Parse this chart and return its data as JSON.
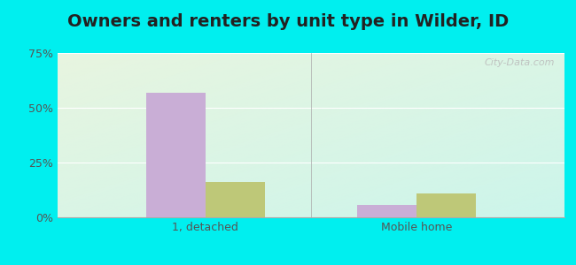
{
  "title": "Owners and renters by unit type in Wilder, ID",
  "categories": [
    "1, detached",
    "Mobile home"
  ],
  "owner_values": [
    57,
    5.5
  ],
  "renter_values": [
    16,
    11
  ],
  "owner_color": "#c9aed6",
  "renter_color": "#bec878",
  "ylim": [
    0,
    75
  ],
  "yticks": [
    0,
    25,
    50,
    75
  ],
  "yticklabels": [
    "0%",
    "25%",
    "50%",
    "75%"
  ],
  "bar_width": 0.28,
  "bg_topleft": "#e8f5e0",
  "bg_topright": "#e8f5e0",
  "bg_bottomleft": "#e8f5e0",
  "bg_bottomright": "#ccf5f0",
  "outer_bg": "#00efef",
  "watermark": "City-Data.com",
  "title_fontsize": 14,
  "tick_fontsize": 9,
  "legend_fontsize": 9,
  "grid_color": "#ffffff",
  "text_color": "#555555"
}
